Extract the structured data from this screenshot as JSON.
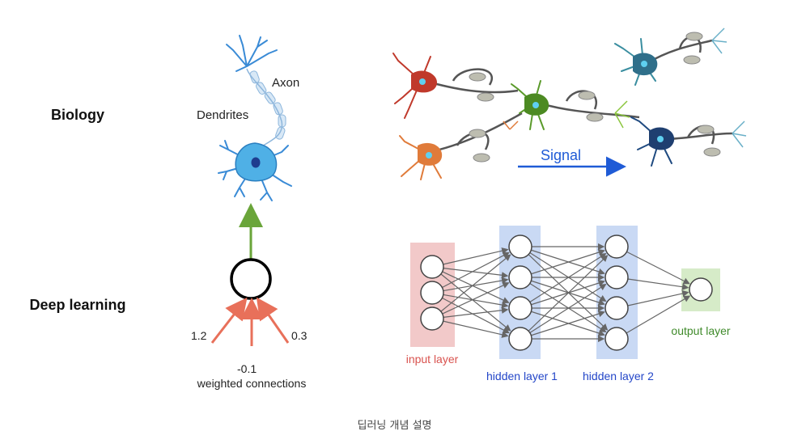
{
  "labels": {
    "biology": "Biology",
    "deep_learning": "Deep learning",
    "axon": "Axon",
    "dendrites": "Dendrites",
    "signal": "Signal",
    "weights": [
      "1.2",
      "-0.1",
      "0.3"
    ],
    "weighted_connections": "weighted connections",
    "input_layer": "input layer",
    "hidden_layer_1": "hidden layer 1",
    "hidden_layer_2": "hidden layer 2",
    "output_layer": "output layer"
  },
  "caption": "딥러닝 개념 설명",
  "network": {
    "input_nodes": 3,
    "hidden1_nodes": 4,
    "hidden2_nodes": 4,
    "output_nodes": 1
  },
  "colors": {
    "input": "#d9534f",
    "input_bg": "#f2c9c9",
    "hidden": "#2346c8",
    "hidden_bg": "#c9d9f4",
    "output": "#3f8a2a",
    "output_bg": "#d6ebc8",
    "arrow_up": "#6aa53a",
    "weight_arrows": "#e8705a",
    "signal": "#1f5bd6"
  }
}
